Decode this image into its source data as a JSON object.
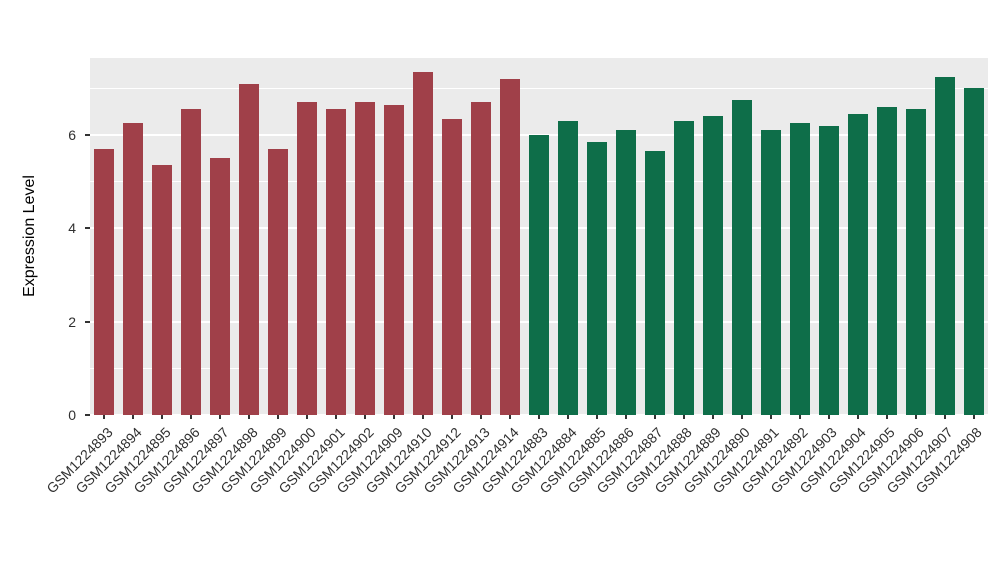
{
  "chart_data": {
    "type": "bar",
    "title": "",
    "xlabel": "",
    "ylabel": "Expression Level",
    "ylim": [
      0,
      7.65
    ],
    "yticks": [
      0,
      2,
      4,
      6
    ],
    "yticks_minor": [
      1,
      3,
      5,
      7
    ],
    "grid": true,
    "legend": false,
    "panel_background": "#EBEBEB",
    "grid_color": "#FFFFFF",
    "axis_text_color": "#303030",
    "groups": [
      {
        "name": "red-group",
        "color": "#A04049"
      },
      {
        "name": "green-group",
        "color": "#0E6E49"
      }
    ],
    "bars": [
      {
        "label": "GSM1224893",
        "value": 5.7,
        "group": 0
      },
      {
        "label": "GSM1224894",
        "value": 6.25,
        "group": 0
      },
      {
        "label": "GSM1224895",
        "value": 5.35,
        "group": 0
      },
      {
        "label": "GSM1224896",
        "value": 6.55,
        "group": 0
      },
      {
        "label": "GSM1224897",
        "value": 5.5,
        "group": 0
      },
      {
        "label": "GSM1224898",
        "value": 7.1,
        "group": 0
      },
      {
        "label": "GSM1224899",
        "value": 5.7,
        "group": 0
      },
      {
        "label": "GSM1224900",
        "value": 6.7,
        "group": 0
      },
      {
        "label": "GSM1224901",
        "value": 6.55,
        "group": 0
      },
      {
        "label": "GSM1224902",
        "value": 6.7,
        "group": 0
      },
      {
        "label": "GSM1224909",
        "value": 6.65,
        "group": 0
      },
      {
        "label": "GSM1224910",
        "value": 7.35,
        "group": 0
      },
      {
        "label": "GSM1224912",
        "value": 6.35,
        "group": 0
      },
      {
        "label": "GSM1224913",
        "value": 6.7,
        "group": 0
      },
      {
        "label": "GSM1224914",
        "value": 7.2,
        "group": 0
      },
      {
        "label": "GSM1224883",
        "value": 6.0,
        "group": 1
      },
      {
        "label": "GSM1224884",
        "value": 6.3,
        "group": 1
      },
      {
        "label": "GSM1224885",
        "value": 5.85,
        "group": 1
      },
      {
        "label": "GSM1224886",
        "value": 6.1,
        "group": 1
      },
      {
        "label": "GSM1224887",
        "value": 5.65,
        "group": 1
      },
      {
        "label": "GSM1224888",
        "value": 6.3,
        "group": 1
      },
      {
        "label": "GSM1224889",
        "value": 6.4,
        "group": 1
      },
      {
        "label": "GSM1224890",
        "value": 6.75,
        "group": 1
      },
      {
        "label": "GSM1224891",
        "value": 6.1,
        "group": 1
      },
      {
        "label": "GSM1224892",
        "value": 6.25,
        "group": 1
      },
      {
        "label": "GSM1224903",
        "value": 6.2,
        "group": 1
      },
      {
        "label": "GSM1224904",
        "value": 6.45,
        "group": 1
      },
      {
        "label": "GSM1224905",
        "value": 6.6,
        "group": 1
      },
      {
        "label": "GSM1224906",
        "value": 6.55,
        "group": 1
      },
      {
        "label": "GSM1224907",
        "value": 7.25,
        "group": 1
      },
      {
        "label": "GSM1224908",
        "value": 7.0,
        "group": 1
      }
    ]
  }
}
